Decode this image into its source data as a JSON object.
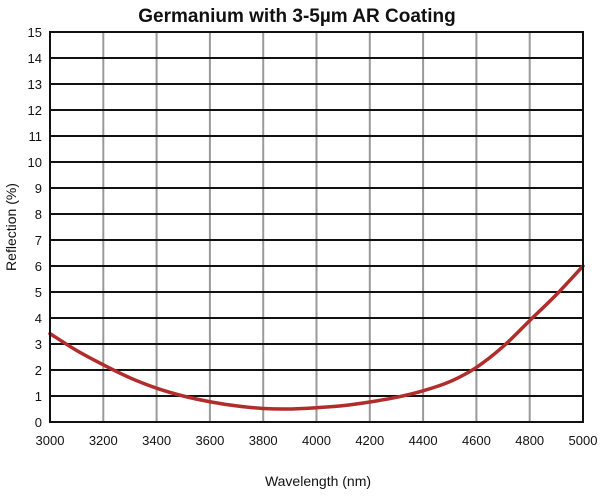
{
  "chart_data": {
    "type": "line",
    "title": "Germanium with 3-5µm AR Coating",
    "xlabel": "Wavelength (nm)",
    "ylabel": "Reflection (%)",
    "xlim": [
      3000,
      5000
    ],
    "ylim": [
      0,
      15
    ],
    "x_ticks": [
      "3000",
      "3200",
      "3400",
      "3600",
      "3800",
      "4000",
      "4200",
      "4400",
      "4600",
      "4800",
      "5000"
    ],
    "y_ticks": [
      "0",
      "1",
      "2",
      "3",
      "4",
      "5",
      "6",
      "7",
      "8",
      "9",
      "10",
      "11",
      "12",
      "13",
      "14",
      "15"
    ],
    "grid": true,
    "series": [
      {
        "color": "#b22c2c",
        "x": [
          3000,
          3100,
          3200,
          3300,
          3400,
          3500,
          3600,
          3700,
          3800,
          3900,
          4000,
          4100,
          4200,
          4300,
          4400,
          4500,
          4600,
          4700,
          4800,
          4900,
          5000
        ],
        "y": [
          3.4,
          2.75,
          2.2,
          1.7,
          1.3,
          1.0,
          0.78,
          0.62,
          0.52,
          0.5,
          0.55,
          0.63,
          0.77,
          0.95,
          1.2,
          1.55,
          2.1,
          2.9,
          3.9,
          4.9,
          6.0
        ]
      }
    ]
  }
}
